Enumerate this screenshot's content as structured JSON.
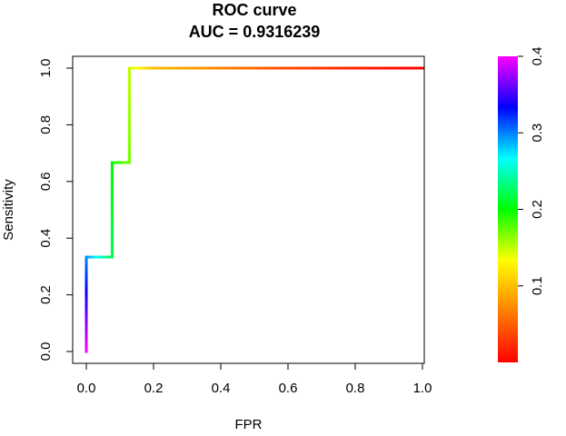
{
  "chart_data": {
    "type": "line",
    "title": "ROC curve",
    "subtitle": "AUC = 0.9316239",
    "xlabel": "FPR",
    "ylabel": "Sensitivity",
    "xlim": [
      0,
      1
    ],
    "ylim": [
      0,
      1
    ],
    "x_ticks": [
      0.0,
      0.2,
      0.4,
      0.6,
      0.8,
      1.0
    ],
    "y_ticks": [
      0.0,
      0.2,
      0.4,
      0.6,
      0.8,
      1.0
    ],
    "x_tick_labels": [
      "0.0",
      "0.2",
      "0.4",
      "0.6",
      "0.8",
      "1.0"
    ],
    "y_tick_labels": [
      "0.0",
      "0.2",
      "0.4",
      "0.6",
      "0.8",
      "1.0"
    ],
    "grid": false,
    "series": [
      {
        "x": [
          0.0,
          0.0,
          0.0,
          0.0769,
          0.0769,
          0.1282,
          0.1282,
          0.2,
          0.4,
          0.6,
          0.8,
          1.0
        ],
        "y": [
          0.0,
          0.3333,
          0.3333,
          0.3333,
          0.6667,
          0.6667,
          1.0,
          1.0,
          1.0,
          1.0,
          1.0,
          1.0
        ],
        "cutoff": [
          0.4,
          0.3,
          0.3,
          0.22,
          0.2,
          0.17,
          0.15,
          0.1,
          0.07,
          0.04,
          0.02,
          0.0
        ]
      }
    ],
    "colorbar": {
      "min": 0.0,
      "max": 0.4,
      "tick_values": [
        0.1,
        0.2,
        0.3,
        0.4
      ],
      "tick_labels": [
        "0.1",
        "0.2",
        "0.3",
        "0.4"
      ],
      "colors": [
        "#ff0000",
        "#ff7f00",
        "#ffff00",
        "#00ff00",
        "#00ffff",
        "#0000ff",
        "#ff00ff"
      ]
    }
  }
}
